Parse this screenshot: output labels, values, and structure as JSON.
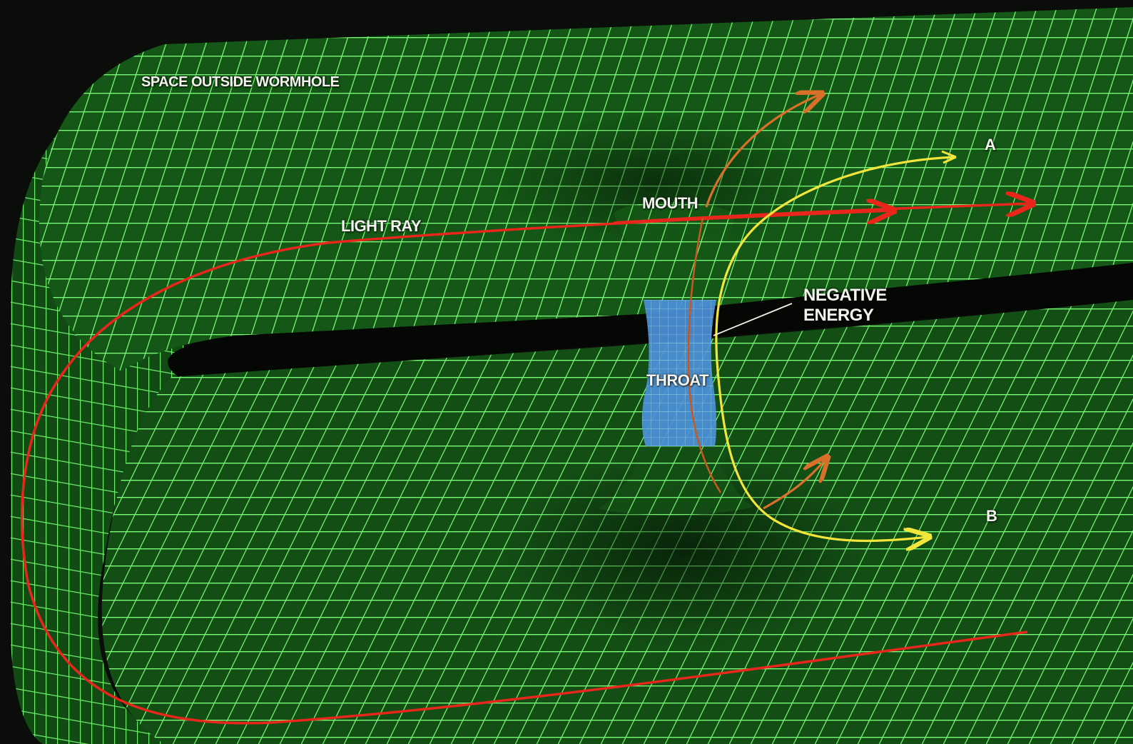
{
  "colors": {
    "background": "#0a0d0a",
    "grid": "#7dff7a",
    "sheet": "#144f16",
    "throat": "#4a8fd8",
    "light_ray": "#e8261c",
    "ray_orange": "#d9702a",
    "ray_yellow": "#f3e63a",
    "label": "#f4f4ee"
  },
  "labels": {
    "space_outside": "SPACE OUTSIDE WORMHOLE",
    "light_ray": "LIGHT RAY",
    "mouth": "MOUTH",
    "negative_energy_line1": "NEGATIVE",
    "negative_energy_line2": "ENERGY",
    "throat": "THROAT",
    "point_a": "A",
    "point_b": "B"
  }
}
